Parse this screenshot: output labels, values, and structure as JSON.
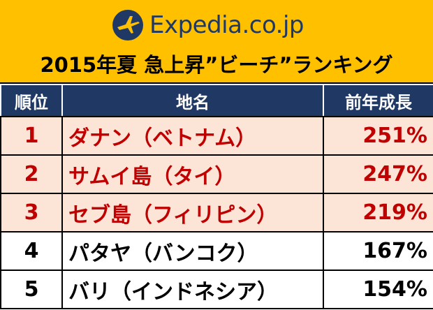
{
  "header": {
    "logo": "Expedia.co.jp",
    "title": "2015年夏 急上昇”ビーチ”ランキング"
  },
  "table": {
    "columns": [
      "順位",
      "地名",
      "前年成長"
    ],
    "highlighted_rows": 3,
    "rows": [
      [
        "1",
        "ダナン（ベトナム）",
        "251%"
      ],
      [
        "2",
        "サムイ島（タイ）",
        "247%"
      ],
      [
        "3",
        "セブ島（フィリピン）",
        "219%"
      ],
      [
        "4",
        "パタヤ（バンコク）",
        "167%"
      ],
      [
        "5",
        "バリ（インドネシア）",
        "154%"
      ]
    ]
  }
}
